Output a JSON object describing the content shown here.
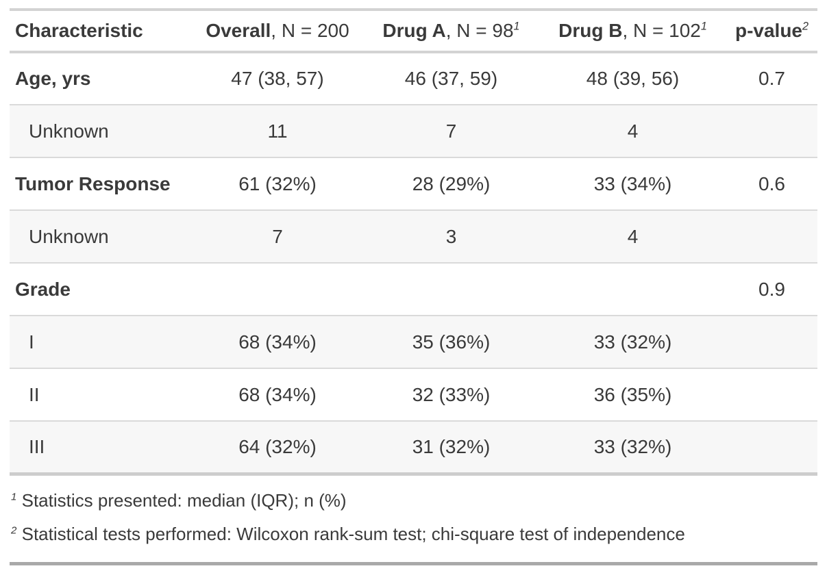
{
  "table": {
    "header": [
      {
        "key": "characteristic",
        "bold": "Characteristic",
        "normal": "",
        "sup": ""
      },
      {
        "key": "overall",
        "bold": "Overall",
        "normal": ", N = 200",
        "sup": ""
      },
      {
        "key": "drug-a",
        "bold": "Drug A",
        "normal": ", N = 98",
        "sup": "1"
      },
      {
        "key": "drug-b",
        "bold": "Drug B",
        "normal": ", N = 102",
        "sup": "1"
      },
      {
        "key": "p-value",
        "bold": "p-value",
        "normal": "",
        "sup": "2"
      }
    ],
    "rows": [
      {
        "label": "Age, yrs",
        "indent": false,
        "values": [
          "47 (38, 57)",
          "46 (37, 59)",
          "48 (39, 56)",
          "0.7"
        ]
      },
      {
        "label": "Unknown",
        "indent": true,
        "values": [
          "11",
          "7",
          "4",
          ""
        ]
      },
      {
        "label": "Tumor Response",
        "indent": false,
        "values": [
          "61 (32%)",
          "28 (29%)",
          "33 (34%)",
          "0.6"
        ]
      },
      {
        "label": "Unknown",
        "indent": true,
        "values": [
          "7",
          "3",
          "4",
          ""
        ]
      },
      {
        "label": "Grade",
        "indent": false,
        "values": [
          "",
          "",
          "",
          "0.9"
        ]
      },
      {
        "label": "I",
        "indent": true,
        "values": [
          "68 (34%)",
          "35 (36%)",
          "33 (32%)",
          ""
        ]
      },
      {
        "label": "II",
        "indent": true,
        "values": [
          "68 (34%)",
          "32 (33%)",
          "36 (35%)",
          ""
        ]
      },
      {
        "label": "III",
        "indent": true,
        "values": [
          "64 (32%)",
          "31 (32%)",
          "33 (32%)",
          ""
        ]
      }
    ],
    "footnotes": [
      {
        "marker": "1",
        "text": "Statistics presented: median (IQR); n (%)"
      },
      {
        "marker": "2",
        "text": "Statistical tests performed: Wilcoxon rank-sum test; chi-square test of independence"
      }
    ]
  },
  "colors": {
    "text": "#3a3a3a",
    "stripe": "#f7f7f7",
    "border_light": "#d3d3d3",
    "border_row": "#dadada",
    "border_body_bottom": "#cdcdcd",
    "border_table_bottom": "#a9a9a9",
    "background": "#ffffff"
  }
}
